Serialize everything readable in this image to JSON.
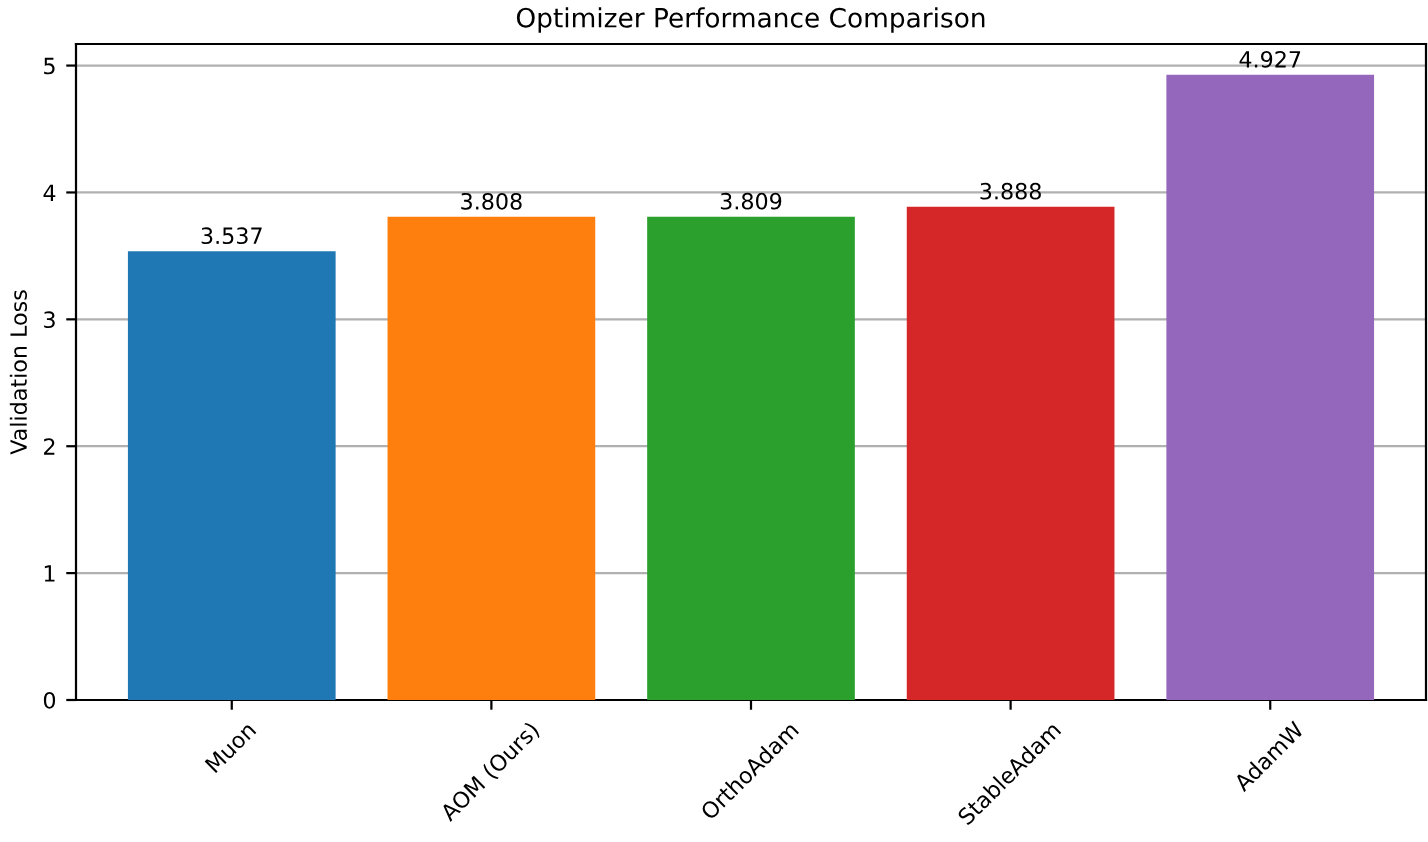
{
  "chart_data": {
    "type": "bar",
    "title": "Optimizer Performance Comparison",
    "ylabel": "Validation Loss",
    "categories": [
      "Muon",
      "AOM (Ours)",
      "OrthoAdam",
      "StableAdam",
      "AdamW"
    ],
    "values": [
      3.537,
      3.808,
      3.809,
      3.888,
      4.927
    ],
    "colors": [
      "#1f77b4",
      "#ff7f0e",
      "#2ca02c",
      "#d62728",
      "#9467bd"
    ],
    "ylim": [
      0,
      5.17
    ],
    "yticks": [
      0,
      1,
      2,
      3,
      4,
      5
    ],
    "grid": "y",
    "data_labels": true
  }
}
